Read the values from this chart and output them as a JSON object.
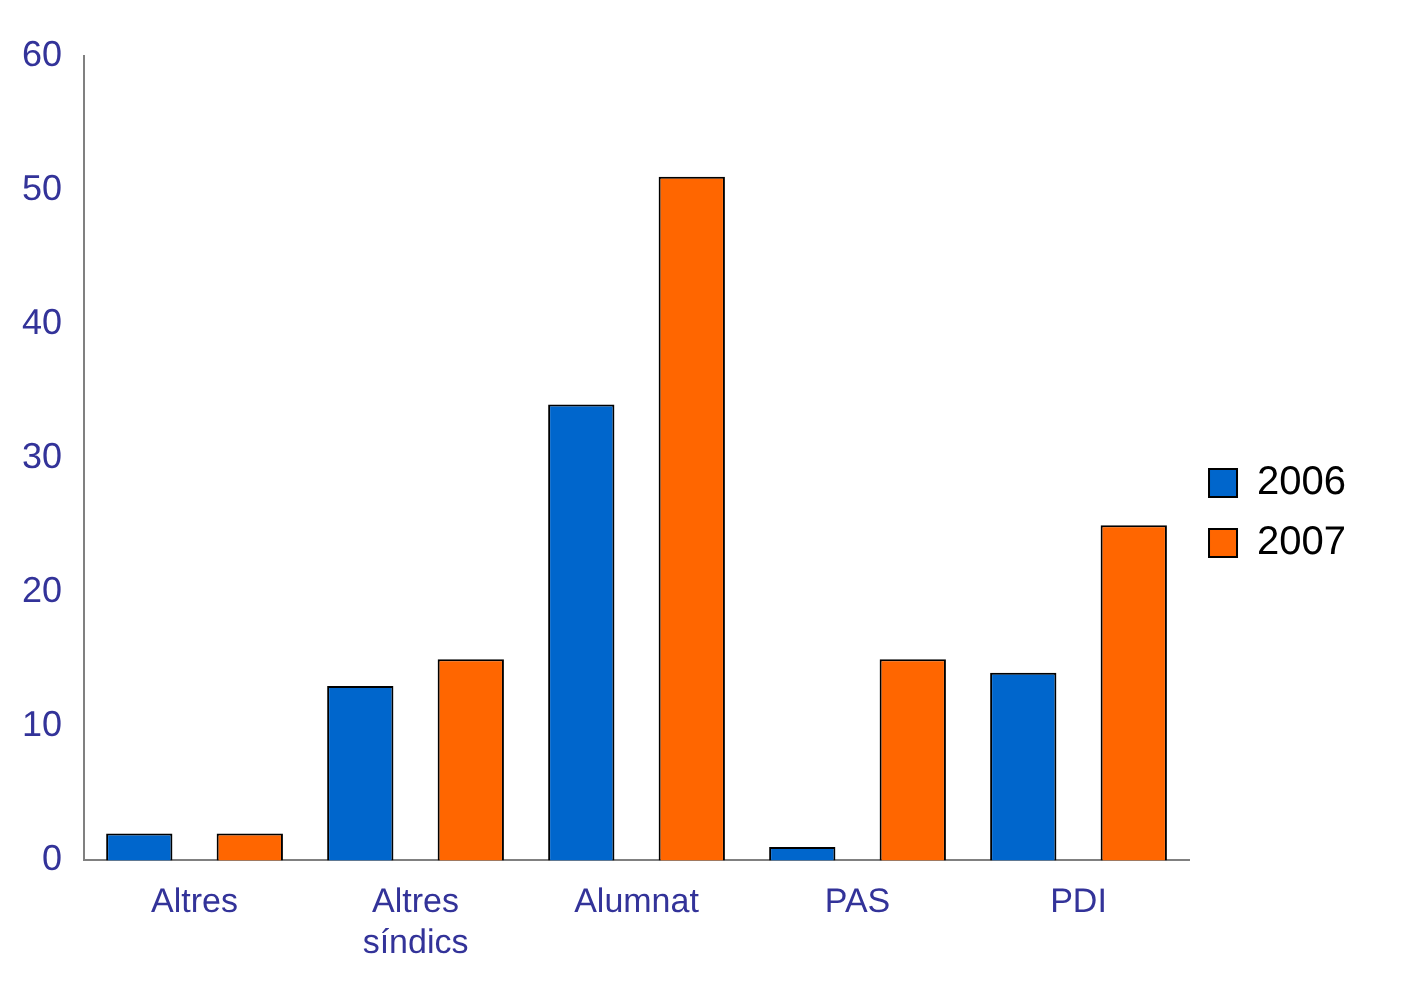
{
  "chart_data": {
    "type": "bar",
    "categories": [
      "Altres",
      "Altres síndics",
      "Alumnat",
      "PAS",
      "PDI"
    ],
    "series": [
      {
        "name": "2006",
        "color": "#0066cc",
        "values": [
          2,
          13,
          34,
          1,
          14
        ]
      },
      {
        "name": "2007",
        "color": "#ff6600",
        "values": [
          2,
          15,
          51,
          15,
          25
        ]
      }
    ],
    "ylim": [
      0,
      60
    ],
    "yticks": [
      0,
      10,
      20,
      30,
      40,
      50,
      60
    ],
    "grid": false,
    "legend": "right"
  }
}
